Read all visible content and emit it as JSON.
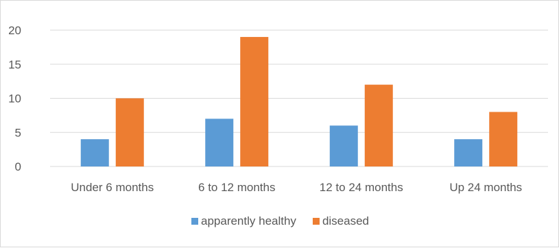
{
  "chart_data": {
    "type": "bar",
    "categories": [
      "Under 6 months",
      "6 to 12 months",
      "12 to 24 months",
      "Up 24 months"
    ],
    "series": [
      {
        "name": "apparently healthy",
        "values": [
          4,
          7,
          6,
          4
        ],
        "color": "#5b9bd5"
      },
      {
        "name": "diseased",
        "values": [
          10,
          19,
          12,
          8
        ],
        "color": "#ed7d31"
      }
    ],
    "ylim": [
      0,
      20
    ],
    "yticks": [
      0,
      5,
      10,
      15,
      20
    ],
    "grid": true,
    "legend_position": "bottom",
    "gridline_color": "#d9d9d9",
    "text_color": "#595959"
  }
}
